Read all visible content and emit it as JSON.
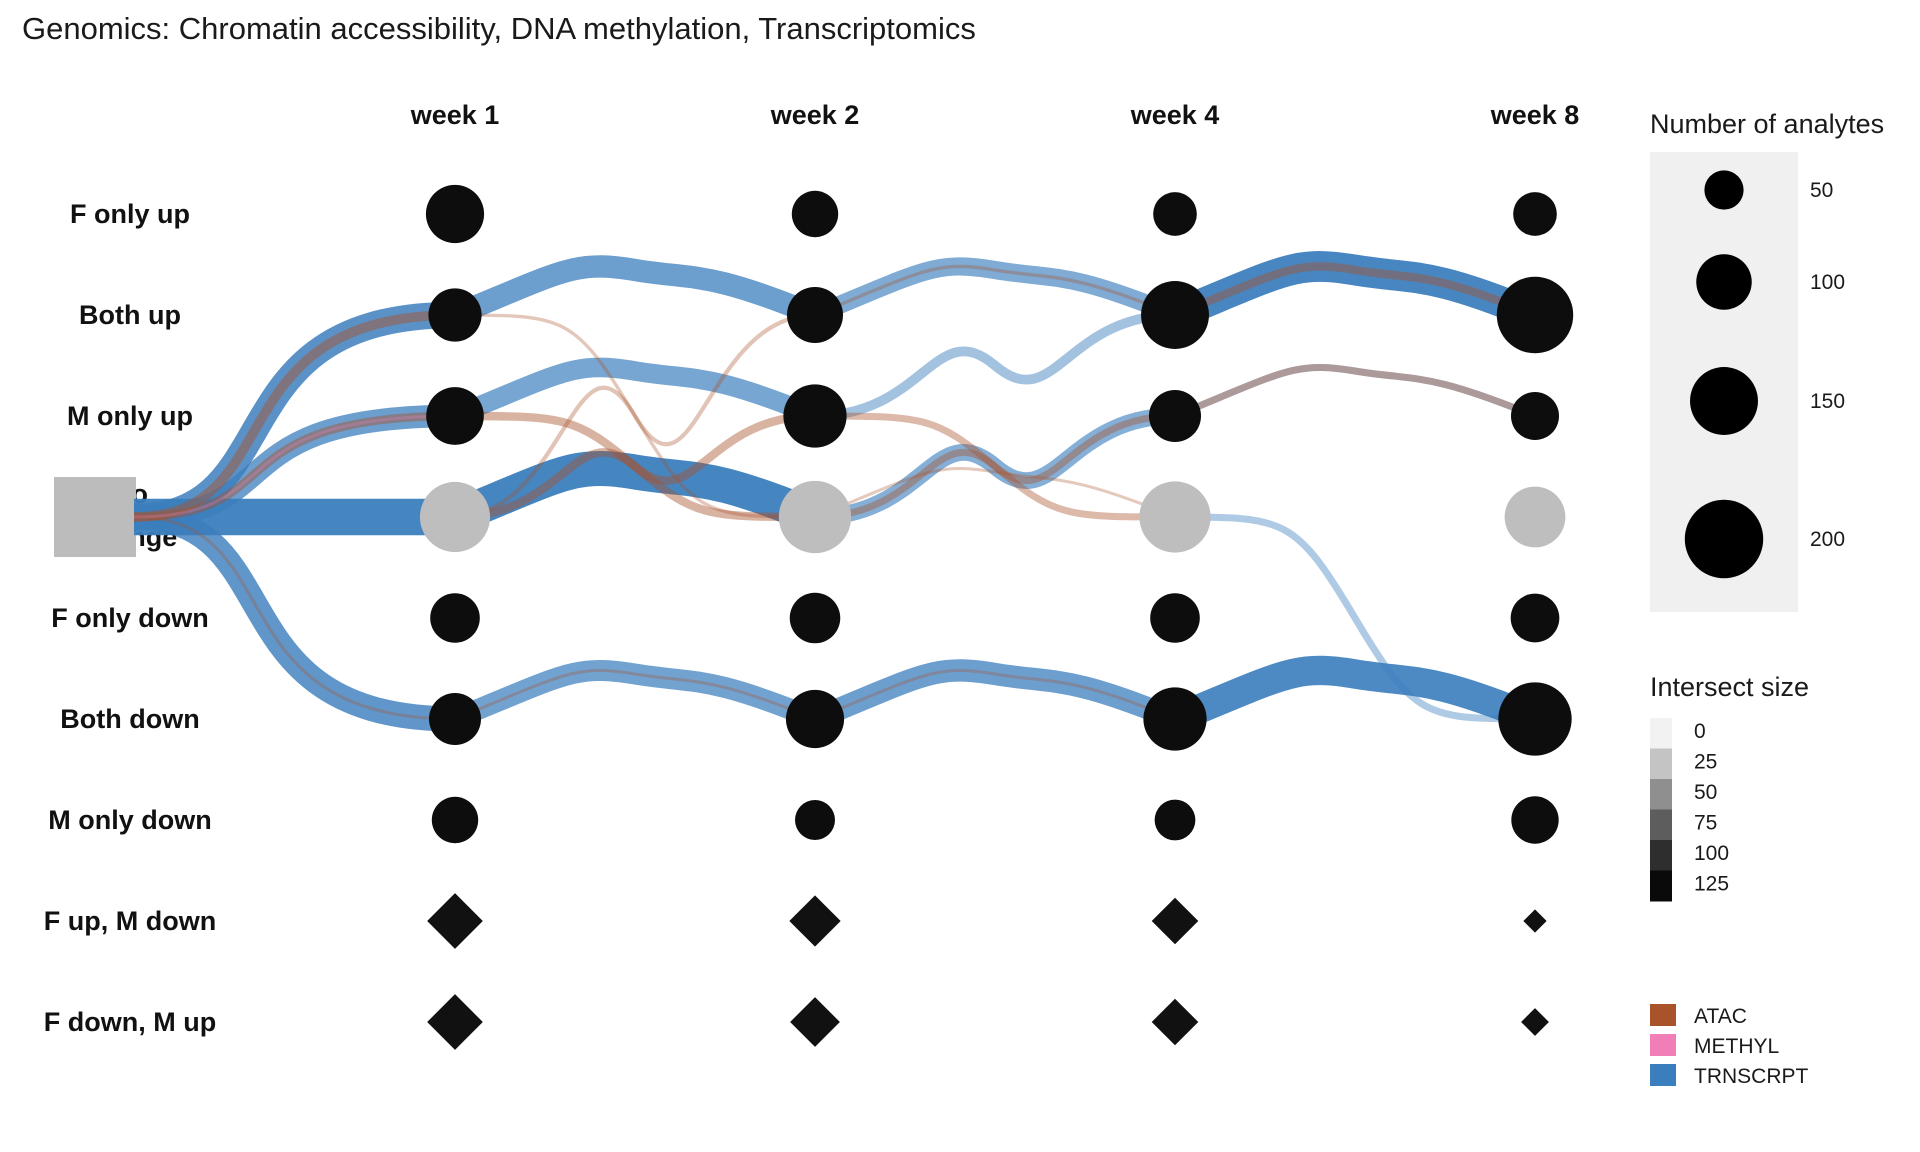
{
  "chart_data": {
    "type": "flow",
    "title": "Genomics: Chromatin accessibility, DNA methylation, Transcriptomics",
    "columns": [
      "week 1",
      "week 2",
      "week 4",
      "week 8"
    ],
    "rows": [
      "F only up",
      "Both up",
      "M only up",
      "No change",
      "F only down",
      "Both down",
      "M only down",
      "F up, M down",
      "F down, M up"
    ],
    "node_sizes": {
      "F only up": [
        110,
        70,
        62,
        62
      ],
      "Both up": [
        92,
        102,
        150,
        190
      ],
      "M only up": [
        108,
        130,
        88,
        75
      ],
      "No change": [
        160,
        170,
        165,
        120
      ],
      "F only down": [
        80,
        83,
        80,
        77
      ],
      "Both down": [
        88,
        110,
        130,
        175
      ],
      "M only down": [
        70,
        52,
        54,
        73
      ],
      "F up, M down": [
        40,
        34,
        28,
        7
      ],
      "F down, M up": [
        40,
        32,
        28,
        10
      ]
    },
    "size_legend": {
      "title": "Number of analytes",
      "breaks": [
        50,
        100,
        150,
        200
      ]
    },
    "intersect_legend": {
      "title": "Intersect size",
      "breaks": [
        0,
        25,
        50,
        75,
        100,
        125
      ]
    },
    "color_legend": {
      "items": [
        {
          "label": "ATAC",
          "color": "#a9532b"
        },
        {
          "label": "METHYL",
          "color": "#f27eb8"
        },
        {
          "label": "TRNSCRPT",
          "color": "#3b7ebd"
        }
      ]
    },
    "flows": [
      {
        "assay": "TRNSCRPT",
        "from": "No change",
        "from_col": "start",
        "to": "Both up",
        "to_col": "week 1",
        "size": 95
      },
      {
        "assay": "TRNSCRPT",
        "from": "No change",
        "from_col": "start",
        "to": "M only up",
        "to_col": "week 1",
        "size": 80
      },
      {
        "assay": "TRNSCRPT",
        "from": "No change",
        "from_col": "start",
        "to": "No change",
        "to_col": "week 1",
        "size": 130
      },
      {
        "assay": "TRNSCRPT",
        "from": "No change",
        "from_col": "start",
        "to": "Both down",
        "to_col": "week 1",
        "size": 90
      },
      {
        "assay": "ATAC",
        "from": "No change",
        "from_col": "start",
        "to": "Both up",
        "to_col": "week 1",
        "size": 35
      },
      {
        "assay": "ATAC",
        "from": "No change",
        "from_col": "start",
        "to": "M only up",
        "to_col": "week 1",
        "size": 30
      },
      {
        "assay": "ATAC",
        "from": "No change",
        "from_col": "start",
        "to": "Both down",
        "to_col": "week 1",
        "size": 10
      },
      {
        "assay": "METHYL",
        "from": "No change",
        "from_col": "start",
        "to": "M only up",
        "to_col": "week 1",
        "size": 5
      },
      {
        "assay": "TRNSCRPT",
        "from": "Both up",
        "from_col": "week 1",
        "to": "Both up",
        "to_col": "week 2",
        "size": 80
      },
      {
        "assay": "TRNSCRPT",
        "from": "M only up",
        "from_col": "week 1",
        "to": "M only up",
        "to_col": "week 2",
        "size": 70
      },
      {
        "assay": "TRNSCRPT",
        "from": "No change",
        "from_col": "week 1",
        "to": "No change",
        "to_col": "week 2",
        "size": 125
      },
      {
        "assay": "TRNSCRPT",
        "from": "Both down",
        "from_col": "week 1",
        "to": "Both down",
        "to_col": "week 2",
        "size": 75
      },
      {
        "assay": "ATAC",
        "from": "Both up",
        "from_col": "week 1",
        "to": "No change",
        "to_col": "week 2",
        "size": 12
      },
      {
        "assay": "ATAC",
        "from": "M only up",
        "from_col": "week 1",
        "to": "No change",
        "to_col": "week 2",
        "size": 30
      },
      {
        "assay": "ATAC",
        "from": "No change",
        "from_col": "week 1",
        "to": "M only up",
        "to_col": "week 2",
        "size": 30
      },
      {
        "assay": "ATAC",
        "from": "No change",
        "from_col": "week 1",
        "to": "Both up",
        "to_col": "week 2",
        "size": 15
      },
      {
        "assay": "ATAC",
        "from": "Both down",
        "from_col": "week 1",
        "to": "Both down",
        "to_col": "week 2",
        "size": 10
      },
      {
        "assay": "TRNSCRPT",
        "from": "Both up",
        "from_col": "week 2",
        "to": "Both up",
        "to_col": "week 4",
        "size": 65
      },
      {
        "assay": "TRNSCRPT",
        "from": "M only up",
        "from_col": "week 2",
        "to": "Both up",
        "to_col": "week 4",
        "size": 35
      },
      {
        "assay": "TRNSCRPT",
        "from": "No change",
        "from_col": "week 2",
        "to": "M only up",
        "to_col": "week 4",
        "size": 60
      },
      {
        "assay": "TRNSCRPT",
        "from": "Both down",
        "from_col": "week 2",
        "to": "Both down",
        "to_col": "week 4",
        "size": 80
      },
      {
        "assay": "ATAC",
        "from": "Both up",
        "from_col": "week 2",
        "to": "Both up",
        "to_col": "week 4",
        "size": 12
      },
      {
        "assay": "ATAC",
        "from": "M only up",
        "from_col": "week 2",
        "to": "No change",
        "to_col": "week 4",
        "size": 25
      },
      {
        "assay": "ATAC",
        "from": "No change",
        "from_col": "week 2",
        "to": "M only up",
        "to_col": "week 4",
        "size": 25
      },
      {
        "assay": "ATAC",
        "from": "No change",
        "from_col": "week 2",
        "to": "No change",
        "to_col": "week 4",
        "size": 10
      },
      {
        "assay": "ATAC",
        "from": "Both down",
        "from_col": "week 2",
        "to": "Both down",
        "to_col": "week 4",
        "size": 8
      },
      {
        "assay": "TRNSCRPT",
        "from": "Both up",
        "from_col": "week 4",
        "to": "Both up",
        "to_col": "week 8",
        "size": 110
      },
      {
        "assay": "TRNSCRPT",
        "from": "M only up",
        "from_col": "week 4",
        "to": "M only up",
        "to_col": "week 8",
        "size": 25
      },
      {
        "assay": "TRNSCRPT",
        "from": "No change",
        "from_col": "week 4",
        "to": "Both down",
        "to_col": "week 8",
        "size": 25
      },
      {
        "assay": "TRNSCRPT",
        "from": "Both down",
        "from_col": "week 4",
        "to": "Both down",
        "to_col": "week 8",
        "size": 105
      },
      {
        "assay": "ATAC",
        "from": "Both up",
        "from_col": "week 4",
        "to": "Both up",
        "to_col": "week 8",
        "size": 30
      },
      {
        "assay": "ATAC",
        "from": "M only up",
        "from_col": "week 4",
        "to": "M only up",
        "to_col": "week 8",
        "size": 25
      }
    ]
  }
}
